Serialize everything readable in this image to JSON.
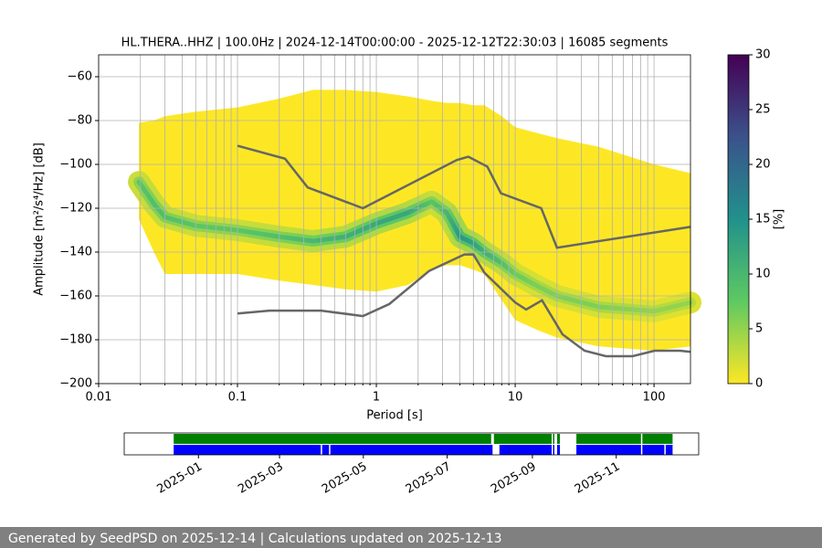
{
  "chart_data": [
    {
      "type": "ppsd",
      "title": "HL.THERA..HHZ | 100.0Hz | 2024-12-14T00:00:00 - 2025-12-12T22:30:03 | 16085 segments",
      "xlabel": "Period [s]",
      "ylabel": "Amplitude [m²/s⁴/Hz] [dB]",
      "log_x": true,
      "grid": true,
      "xlim": [
        0.01,
        183
      ],
      "ylim": [
        -200,
        -50
      ],
      "xticks": [
        0.01,
        0.1,
        1,
        10,
        100
      ],
      "xminorticks": [
        0.02,
        0.03,
        0.04,
        0.05,
        0.06,
        0.07,
        0.08,
        0.09,
        0.2,
        0.3,
        0.4,
        0.5,
        0.6,
        0.7,
        0.8,
        0.9,
        2,
        3,
        4,
        5,
        6,
        7,
        8,
        9,
        20,
        30,
        40,
        50,
        60,
        70,
        80,
        90
      ],
      "yticks": [
        {
          "value": -200,
          "label": "−200"
        },
        {
          "value": -180,
          "label": "−180"
        },
        {
          "value": -160,
          "label": "−160"
        },
        {
          "value": -140,
          "label": "−140"
        },
        {
          "value": -120,
          "label": "−120"
        },
        {
          "value": -100,
          "label": "−100"
        },
        {
          "value": -80,
          "label": "−80"
        },
        {
          "value": -60,
          "label": "−60"
        }
      ],
      "colormap": [
        "#fde725",
        "#5ec962",
        "#21918c",
        "#3b528b",
        "#440154"
      ],
      "clim": [
        0,
        30
      ],
      "cticks": [
        0,
        5,
        10,
        15,
        20,
        25,
        30
      ],
      "clabel": "[%]",
      "pdf": {
        "x": [
          0.0195,
          0.025,
          0.03,
          0.05,
          0.1,
          0.2,
          0.35,
          0.6,
          1,
          1.7,
          2.5,
          3.2,
          4,
          5,
          6,
          8,
          10,
          15,
          20,
          40,
          100,
          183
        ],
        "upper": [
          -81,
          -80,
          -78,
          -76,
          -74,
          -70,
          -66,
          -66,
          -67,
          -69,
          -71,
          -72,
          -72,
          -73,
          -73,
          -78,
          -83,
          -86,
          -88,
          -92,
          -100,
          -104
        ],
        "lower": [
          -125,
          -140,
          -150,
          -150,
          -150,
          -153,
          -155,
          -157,
          -158,
          -155,
          -148,
          -146,
          -146,
          -148,
          -150,
          -162,
          -171,
          -176,
          -179,
          -183,
          -185,
          -183
        ],
        "mode": [
          -108,
          -118,
          -124,
          -128,
          -130,
          -133,
          -135,
          -133,
          -127,
          -122,
          -117,
          -122,
          -133,
          -136,
          -140,
          -145,
          -150,
          -156,
          -160,
          -165,
          -167,
          -163
        ],
        "percent": [
          8,
          9,
          9,
          8,
          8,
          9,
          10,
          11,
          12,
          12,
          8,
          10,
          14,
          13,
          11,
          9,
          7,
          6,
          6,
          6,
          5,
          5
        ]
      },
      "lines": [
        {
          "color": "#666666",
          "x": [
            0.1,
            0.22,
            0.32,
            0.8,
            3.8,
            4.6,
            6.3,
            7.9,
            15.4,
            20,
            183
          ],
          "values": [
            -91.5,
            -97.4,
            -110.5,
            -120,
            -98,
            -96.5,
            -101,
            -113.2,
            -120,
            -138,
            -128.5
          ]
        },
        {
          "color": "#666666",
          "x": [
            0.1,
            0.17,
            0.4,
            0.8,
            1.24,
            2.4,
            4.3,
            5.0,
            6.0,
            10,
            12,
            15.6,
            21.9,
            31.6,
            45,
            70,
            101,
            154,
            183
          ],
          "values": [
            -168,
            -166.7,
            -166.7,
            -169.2,
            -163.7,
            -148.6,
            -141.1,
            -141.1,
            -149.4,
            -163,
            -166.2,
            -162,
            -177.5,
            -185,
            -187.5,
            -187.5,
            -185,
            -185,
            -185.5
          ]
        }
      ]
    },
    {
      "type": "timeline",
      "xlim": [
        "2024-11-08",
        "2025-12-31"
      ],
      "xticks": [
        "2025-01",
        "2025-03",
        "2025-05",
        "2025-07",
        "2025-09",
        "2025-11"
      ],
      "bars": [
        {
          "color": "#008000",
          "segments": [
            [
              "2024-12-14",
              "2025-08-02"
            ],
            [
              "2025-08-04",
              "2025-09-15"
            ],
            [
              "2025-09-16",
              "2025-09-17"
            ],
            [
              "2025-09-19",
              "2025-09-21"
            ],
            [
              "2025-10-03",
              "2025-11-19"
            ],
            [
              "2025-11-20",
              "2025-12-12"
            ]
          ]
        },
        {
          "color": "#0000ff",
          "segments": [
            [
              "2024-12-14",
              "2025-03-31"
            ],
            [
              "2025-04-01",
              "2025-04-06"
            ],
            [
              "2025-04-07",
              "2025-08-03"
            ],
            [
              "2025-08-08",
              "2025-09-15"
            ],
            [
              "2025-09-16",
              "2025-09-17"
            ],
            [
              "2025-09-19",
              "2025-09-21"
            ],
            [
              "2025-10-03",
              "2025-11-19"
            ],
            [
              "2025-11-20",
              "2025-12-06"
            ],
            [
              "2025-12-07",
              "2025-12-12"
            ]
          ]
        }
      ]
    }
  ],
  "footer": "Generated by SeedPSD on 2025-12-14 | Calculations updated on 2025-12-13"
}
